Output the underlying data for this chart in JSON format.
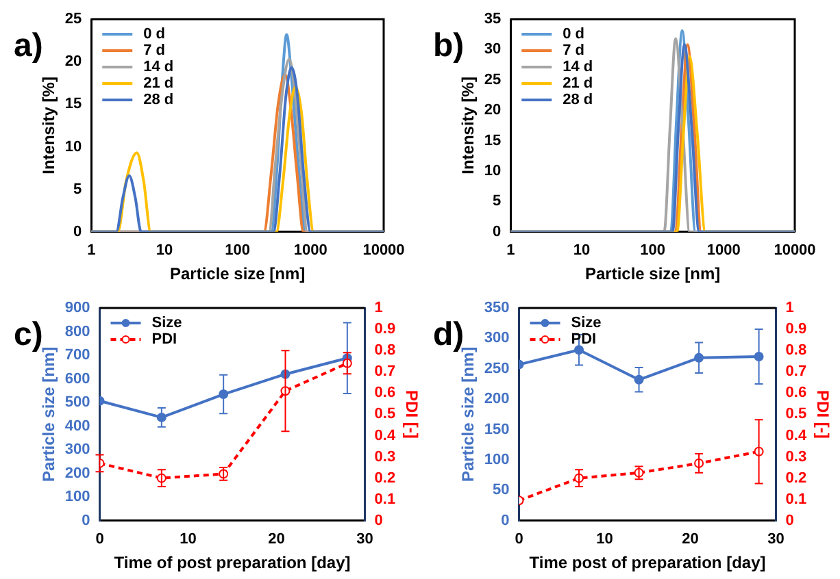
{
  "chart_data": [
    {
      "type": "line",
      "title": "a)",
      "xlabel": "Particle size [nm]",
      "ylabel": "Intensity [%]",
      "log": "x",
      "xlim": [
        1,
        10000
      ],
      "xticks": [
        1,
        10,
        100,
        1000,
        10000
      ],
      "ylim": [
        0,
        25
      ],
      "yticks": [
        0,
        5,
        10,
        15,
        20,
        25
      ],
      "legend": "top left",
      "marker": "none",
      "series": [
        {
          "name": "0 d",
          "color": "#5b9bd5",
          "x": [
            1,
            290,
            350,
            410,
            470,
            550,
            680,
            850,
            10000
          ],
          "values": [
            0,
            0,
            8,
            18,
            23.2,
            18,
            8,
            0,
            0
          ]
        },
        {
          "name": "7 d",
          "color": "#ed7d31",
          "x": [
            1,
            230,
            290,
            360,
            450,
            530,
            650,
            800,
            10000
          ],
          "values": [
            0,
            0,
            7,
            15,
            18.5,
            15,
            7,
            0,
            0
          ]
        },
        {
          "name": "14 d",
          "color": "#a5a5a5",
          "x": [
            1,
            270,
            330,
            420,
            510,
            600,
            740,
            900,
            10000
          ],
          "values": [
            0,
            0,
            8,
            17,
            20.3,
            17,
            8,
            0,
            0
          ]
        },
        {
          "name": "21 d",
          "color": "#ffc000",
          "x": [
            1,
            2.3,
            3,
            4.2,
            5.2,
            6.5,
            340,
            420,
            520,
            620,
            750,
            900,
            1100,
            10000
          ],
          "values": [
            0,
            0,
            6,
            9.3,
            6,
            0,
            0,
            6,
            14,
            17,
            14,
            6,
            0,
            0
          ]
        },
        {
          "name": "28 d",
          "color": "#4472c4",
          "x": [
            1,
            2.2,
            2.7,
            3.3,
            4,
            4.8,
            310,
            380,
            460,
            550,
            660,
            800,
            1000,
            10000
          ],
          "values": [
            0,
            0,
            4,
            6.6,
            4,
            0,
            0,
            7,
            16,
            19.3,
            16,
            7,
            0,
            0
          ]
        }
      ]
    },
    {
      "type": "line",
      "title": "b)",
      "xlabel": "Particle size [nm]",
      "ylabel": "Intensity [%]",
      "log": "x",
      "xlim": [
        1,
        10000
      ],
      "xticks": [
        1,
        10,
        100,
        1000,
        10000
      ],
      "ylim": [
        0,
        35
      ],
      "yticks": [
        0,
        5,
        10,
        15,
        20,
        25,
        30,
        35
      ],
      "legend": "top left",
      "marker": "none",
      "series": [
        {
          "name": "0 d",
          "color": "#5b9bd5",
          "x": [
            1,
            180,
            215,
            260,
            320,
            400,
            10000
          ],
          "values": [
            0,
            0,
            18,
            33.1,
            18,
            0,
            0
          ]
        },
        {
          "name": "7 d",
          "color": "#ed7d31",
          "x": [
            1,
            210,
            255,
            310,
            385,
            480,
            10000
          ],
          "values": [
            0,
            0,
            17,
            30.8,
            17,
            0,
            0
          ]
        },
        {
          "name": "14 d",
          "color": "#a5a5a5",
          "x": [
            1,
            145,
            175,
            210,
            265,
            330,
            10000
          ],
          "values": [
            0,
            0,
            17,
            31.8,
            17,
            0,
            0
          ]
        },
        {
          "name": "21 d",
          "color": "#ffc000",
          "x": [
            1,
            220,
            270,
            330,
            425,
            550,
            10000
          ],
          "values": [
            0,
            0,
            16,
            28.8,
            16,
            0,
            0
          ]
        },
        {
          "name": "28 d",
          "color": "#4472c4",
          "x": [
            1,
            190,
            230,
            280,
            355,
            450,
            10000
          ],
          "values": [
            0,
            0,
            17,
            30.8,
            17,
            0,
            0
          ]
        }
      ]
    },
    {
      "type": "line",
      "title": "c)",
      "xlabel": "Time of post preparation [day]",
      "ylabel": "Particle size [nm]",
      "y2label": "PDI [-]",
      "x": [
        0,
        7,
        14,
        21,
        28
      ],
      "xlim": [
        0,
        30
      ],
      "xticks": [
        0,
        10,
        20,
        30
      ],
      "ylim": [
        0,
        900
      ],
      "yticks": [
        0,
        100,
        200,
        300,
        400,
        500,
        600,
        700,
        800,
        900
      ],
      "y2lim": [
        0,
        1
      ],
      "y2ticks": [
        0,
        0.1,
        0.2,
        0.3,
        0.4,
        0.5,
        0.6,
        0.7,
        0.8,
        0.9,
        1
      ],
      "legend": "top left",
      "marker": "circle",
      "series": [
        {
          "name": "Size",
          "color": "#4472c4",
          "values": [
            507,
            437,
            535,
            620,
            688
          ],
          "errors": [
            null,
            40,
            82,
            null,
            150
          ]
        },
        {
          "name": "PDI",
          "color": "#ff0000",
          "axis": "y2",
          "line_style": "dashed",
          "values": [
            0.27,
            0.2,
            0.22,
            0.61,
            0.74
          ],
          "errors": [
            0.04,
            0.04,
            0.03,
            0.19,
            0.05
          ]
        }
      ]
    },
    {
      "type": "line",
      "title": "d)",
      "xlabel": "Time post of preparation [day]",
      "ylabel": "Particle size [nm]",
      "y2label": "PDI [-]",
      "x": [
        0,
        7,
        14,
        21,
        28
      ],
      "xlim": [
        0,
        30
      ],
      "xticks": [
        0,
        10,
        20,
        30
      ],
      "ylim": [
        0,
        350
      ],
      "yticks": [
        0,
        50,
        100,
        150,
        200,
        250,
        300,
        350
      ],
      "y2lim": [
        0,
        1
      ],
      "y2ticks": [
        0,
        0.1,
        0.2,
        0.3,
        0.4,
        0.5,
        0.6,
        0.7,
        0.8,
        0.9,
        1
      ],
      "legend": "top left",
      "marker": "circle",
      "series": [
        {
          "name": "Size",
          "color": "#4472c4",
          "values": [
            257,
            281,
            232,
            268,
            270
          ],
          "errors": [
            null,
            25,
            20,
            25,
            45
          ]
        },
        {
          "name": "PDI",
          "color": "#ff0000",
          "axis": "y2",
          "line_style": "dashed",
          "values": [
            0.095,
            0.2,
            0.225,
            0.27,
            0.325
          ],
          "errors": [
            null,
            0.04,
            0.03,
            0.045,
            0.15
          ]
        }
      ]
    }
  ]
}
